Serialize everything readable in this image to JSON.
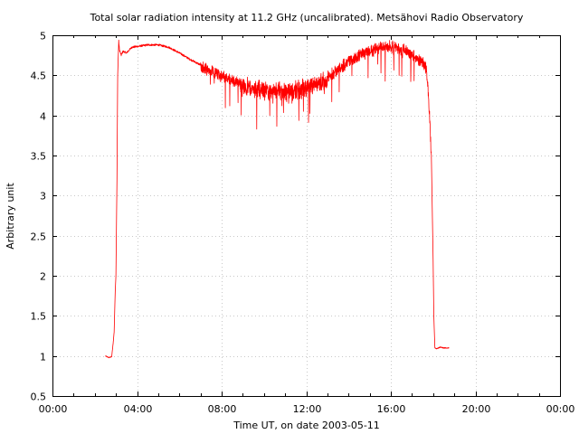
{
  "chart_data": {
    "type": "line",
    "title": "Total solar radiation intensity at 11.2 GHz (uncalibrated). Metsähovi Radio Observatory",
    "xlabel": "Time UT, on date 2003-05-11",
    "ylabel": "Arbitrary unit",
    "xlim": [
      "00:00",
      "24:00"
    ],
    "ylim": [
      0.5,
      5
    ],
    "x_ticks": [
      "00:00",
      "04:00",
      "08:00",
      "12:00",
      "16:00",
      "20:00",
      "00:00"
    ],
    "y_ticks": [
      "0.5",
      "1",
      "1.5",
      "2",
      "2.5",
      "3",
      "3.5",
      "4",
      "4.5",
      "5"
    ],
    "grid": true,
    "color": "#ff0000",
    "series": [
      {
        "x": [
          "02:30",
          "02:40",
          "02:48",
          "02:52",
          "02:55",
          "02:58",
          "03:00",
          "03:03",
          "03:05",
          "03:08",
          "03:10",
          "03:15",
          "03:20",
          "03:30",
          "03:45",
          "04:00",
          "04:30",
          "05:00",
          "05:30",
          "06:00",
          "06:30",
          "07:00",
          "07:30",
          "08:00",
          "08:30",
          "09:00",
          "09:30",
          "10:00",
          "10:30",
          "11:00",
          "11:30",
          "12:00",
          "12:30",
          "13:00",
          "13:30",
          "14:00",
          "14:30",
          "15:00",
          "15:30",
          "16:00",
          "16:30",
          "17:00",
          "17:20",
          "17:30",
          "17:40",
          "17:45",
          "17:50",
          "17:55",
          "18:00",
          "18:02",
          "18:05",
          "18:10",
          "18:20",
          "18:30",
          "18:45"
        ],
        "values": [
          1.0,
          0.98,
          0.99,
          1.15,
          1.3,
          1.8,
          2.0,
          3.2,
          4.5,
          4.93,
          4.82,
          4.75,
          4.8,
          4.78,
          4.85,
          4.86,
          4.88,
          4.88,
          4.85,
          4.78,
          4.7,
          4.63,
          4.58,
          4.52,
          4.46,
          4.42,
          4.38,
          4.36,
          4.35,
          4.34,
          4.36,
          4.38,
          4.42,
          4.5,
          4.6,
          4.7,
          4.78,
          4.83,
          4.87,
          4.89,
          4.86,
          4.8,
          4.72,
          4.7,
          4.62,
          4.4,
          4.0,
          3.5,
          2.2,
          1.5,
          1.1,
          1.09,
          1.11,
          1.1,
          1.1
        ]
      }
    ]
  }
}
